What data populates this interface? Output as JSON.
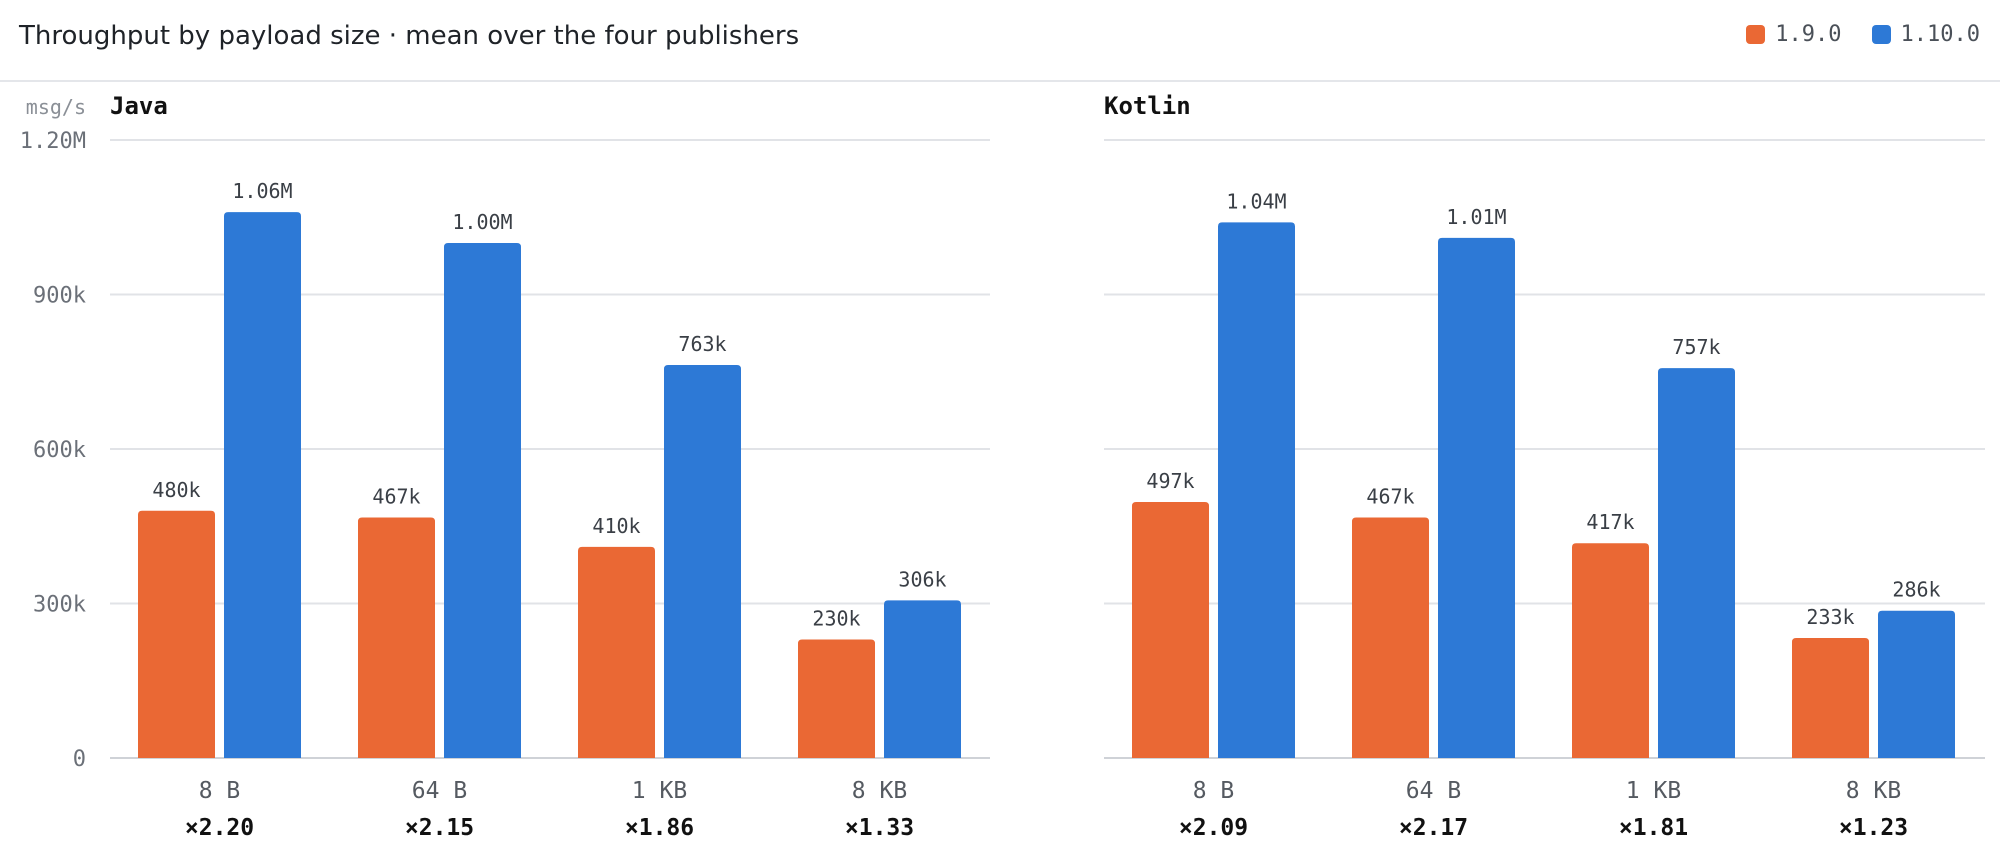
{
  "title": "Throughput by payload size · mean over the four publishers",
  "legend": [
    {
      "label": "1.9.0",
      "color": "#ea6834"
    },
    {
      "label": "1.10.0",
      "color": "#2d79d6"
    }
  ],
  "colors": {
    "series_a": "#ea6834",
    "series_b": "#2d79d6",
    "grid": "#e1e3e7",
    "axis_text": "#6b7078",
    "value_text": "#3a3f46",
    "ratio_text": "#111111"
  },
  "chart_data": [
    {
      "type": "bar",
      "title": "Java",
      "ylabel": "msg/s",
      "ylim": [
        0,
        1200000
      ],
      "yticks": [
        0,
        300000,
        600000,
        900000,
        1200000
      ],
      "ytick_labels": [
        "0",
        "300k",
        "600k",
        "900k",
        "1.20M"
      ],
      "categories": [
        "8 B",
        "64 B",
        "1 KB",
        "8 KB"
      ],
      "ratios": [
        "×2.20",
        "×2.15",
        "×1.86",
        "×1.33"
      ],
      "series": [
        {
          "name": "1.9.0",
          "values": [
            480000,
            467000,
            410000,
            230000
          ],
          "labels": [
            "480k",
            "467k",
            "410k",
            "230k"
          ]
        },
        {
          "name": "1.10.0",
          "values": [
            1060000,
            1000000,
            763000,
            306000
          ],
          "labels": [
            "1.06M",
            "1.00M",
            "763k",
            "306k"
          ]
        }
      ],
      "grid": true,
      "legend_position": "top-right"
    },
    {
      "type": "bar",
      "title": "Kotlin",
      "ylim": [
        0,
        1200000
      ],
      "yticks": [
        0,
        300000,
        600000,
        900000,
        1200000
      ],
      "categories": [
        "8 B",
        "64 B",
        "1 KB",
        "8 KB"
      ],
      "ratios": [
        "×2.09",
        "×2.17",
        "×1.81",
        "×1.23"
      ],
      "series": [
        {
          "name": "1.9.0",
          "values": [
            497000,
            467000,
            417000,
            233000
          ],
          "labels": [
            "497k",
            "467k",
            "417k",
            "233k"
          ]
        },
        {
          "name": "1.10.0",
          "values": [
            1040000,
            1010000,
            757000,
            286000
          ],
          "labels": [
            "1.04M",
            "1.01M",
            "757k",
            "286k"
          ]
        }
      ],
      "grid": true,
      "legend_position": "top-right"
    }
  ]
}
